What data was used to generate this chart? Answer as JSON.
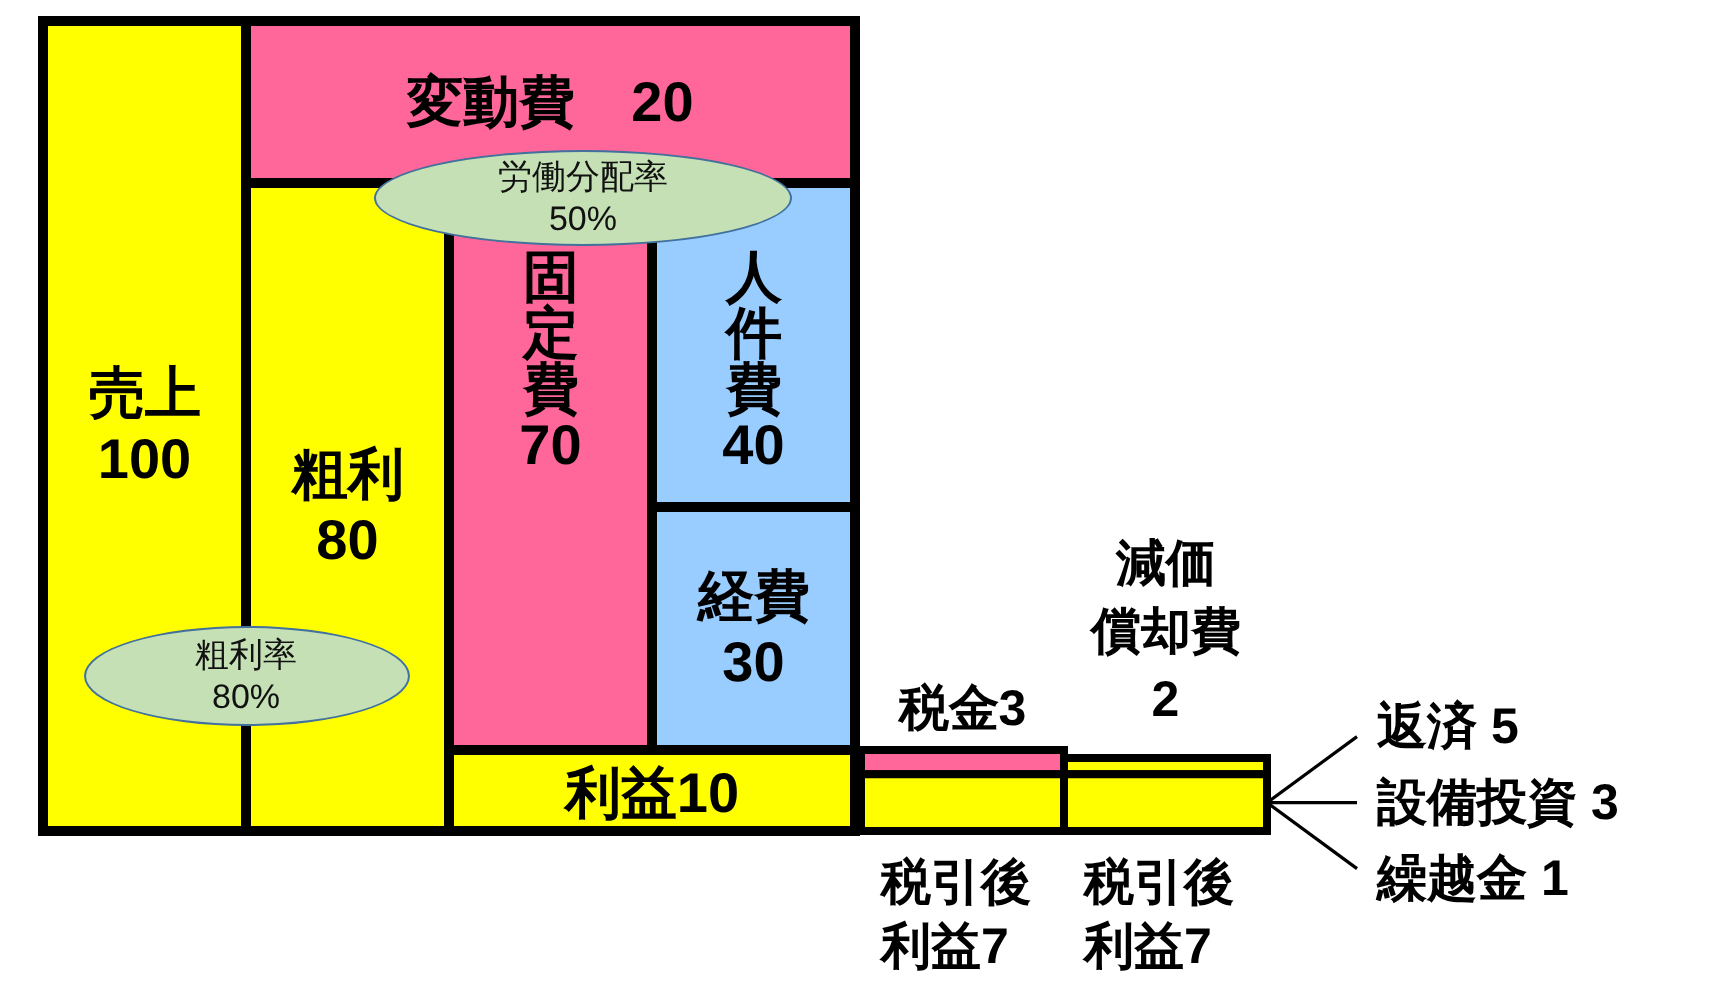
{
  "chart_data": {
    "type": "other",
    "categories": [
      "売上",
      "変動費",
      "粗利",
      "固定費",
      "人件費",
      "経費",
      "利益",
      "税金",
      "税引後利益",
      "減価償却費",
      "税引後利益",
      "返済",
      "設備投資",
      "繰越金"
    ],
    "values": [
      100,
      20,
      80,
      70,
      40,
      30,
      10,
      3,
      7,
      2,
      7,
      5,
      3,
      1
    ],
    "colors": [
      "#ffff00",
      "#ff6699",
      "#ffff00",
      "#ff6699",
      "#99ccff",
      "#99ccff",
      "#ffff00",
      "#ff6699",
      "#ffff00",
      "#ffff00",
      "#ffff00",
      "#000000",
      "#000000",
      "#000000"
    ],
    "data_labels": true,
    "annotations": [
      "労働分配率 50%",
      "粗利率 80%"
    ]
  }
}
